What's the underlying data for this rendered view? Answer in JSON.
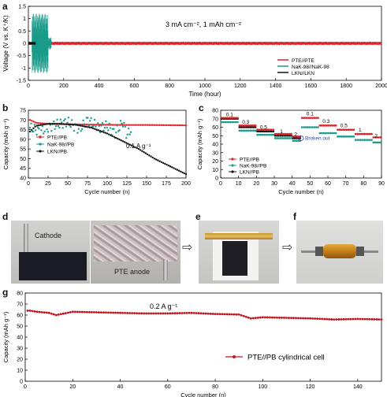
{
  "panels": {
    "a": "a",
    "b": "b",
    "c": "c",
    "d": "d",
    "e": "e",
    "f": "f",
    "g": "g"
  },
  "colors": {
    "red": "#e0202a",
    "teal": "#1a9b8a",
    "black": "#111111",
    "dark_red": "#c0141e"
  },
  "chart_data": [
    {
      "id": "a",
      "type": "line",
      "xlabel": "Time (hour)",
      "ylabel": "Voltage (V vs. K⁺/K)",
      "annotation": "3 mA cm⁻², 1 mAh cm⁻²",
      "xlim": [
        0,
        2000
      ],
      "ylim": [
        -1.5,
        1.5
      ],
      "xticks": [
        0,
        200,
        400,
        600,
        800,
        1000,
        1200,
        1400,
        1600,
        1800,
        2000
      ],
      "yticks": [
        -1.5,
        -1.0,
        -0.5,
        0.0,
        0.5,
        1.0,
        1.5
      ],
      "legend": [
        "PTE//PTE",
        "NaK-98//NaK-98",
        "LKN//LKN"
      ],
      "legend_position": "bottom-right",
      "series": [
        {
          "name": "PTE//PTE",
          "color": "#e0202a",
          "amplitude": 0.07,
          "x_end": 2000
        },
        {
          "name": "NaK-98//NaK-98",
          "color": "#1a9b8a",
          "amplitude": 1.2,
          "x_end": 130
        },
        {
          "name": "LKN//LKN",
          "color": "#111111",
          "amplitude": 0.05,
          "x_end": 40
        }
      ]
    },
    {
      "id": "b",
      "type": "scatter",
      "xlabel": "Cycle number (n)",
      "ylabel": "Capacity (mAh g⁻¹)",
      "annotation": "0.1 A g⁻¹",
      "xlim": [
        0,
        200
      ],
      "ylim": [
        40,
        75
      ],
      "xticks": [
        0,
        25,
        50,
        75,
        100,
        125,
        150,
        175,
        200
      ],
      "yticks": [
        40,
        45,
        50,
        55,
        60,
        65,
        70,
        75
      ],
      "legend": [
        "PTE//PB",
        "NaK-98//PB",
        "LKN//PB"
      ],
      "legend_position": "center-left",
      "series": [
        {
          "name": "PTE//PB",
          "color": "#e0202a",
          "x": [
            2,
            10,
            25,
            50,
            75,
            100,
            125,
            150,
            175,
            200
          ],
          "values": [
            70,
            68.5,
            68,
            67.8,
            67.6,
            67.5,
            67.4,
            67.4,
            67.3,
            67.2
          ]
        },
        {
          "name": "NaK-98//PB",
          "color": "#1a9b8a",
          "x": [
            2,
            15,
            30,
            50,
            65,
            75,
            90,
            100,
            110,
            120,
            125,
            130
          ],
          "values": [
            66,
            64,
            67,
            69,
            65,
            70,
            66,
            67,
            63,
            69,
            62,
            65
          ]
        },
        {
          "name": "LKN//PB",
          "color": "#111111",
          "x": [
            2,
            10,
            25,
            40,
            60,
            80,
            100,
            120,
            140,
            160,
            175,
            190,
            200
          ],
          "values": [
            64,
            67,
            68,
            68,
            67.5,
            66,
            63,
            59,
            55,
            50,
            47,
            44,
            42
          ]
        }
      ]
    },
    {
      "id": "c",
      "type": "scatter",
      "xlabel": "Cycle number (n)",
      "ylabel": "Capacity (mAh g⁻¹)",
      "xlim": [
        0,
        90
      ],
      "ylim": [
        0,
        80
      ],
      "xticks": [
        0,
        10,
        20,
        30,
        40,
        50,
        60,
        70,
        80,
        90
      ],
      "yticks": [
        0,
        10,
        20,
        30,
        40,
        50,
        60,
        70,
        80
      ],
      "rate_labels": [
        {
          "text": "0.1",
          "x": 5,
          "y": 73
        },
        {
          "text": "0.3",
          "x": 14,
          "y": 64
        },
        {
          "text": "0.5",
          "x": 24,
          "y": 58
        },
        {
          "text": "1",
          "x": 34,
          "y": 53
        },
        {
          "text": "2",
          "x": 42,
          "y": 50
        },
        {
          "text": "0.1",
          "x": 50,
          "y": 74
        },
        {
          "text": "0.3",
          "x": 59,
          "y": 65
        },
        {
          "text": "0.5",
          "x": 69,
          "y": 60
        },
        {
          "text": "1",
          "x": 78,
          "y": 55
        },
        {
          "text": "2",
          "x": 87,
          "y": 48
        }
      ],
      "broken_label": "Broken out",
      "broken_at": {
        "x": 45,
        "y": 47
      },
      "legend": [
        "PTE//PB",
        "NaK-98//PB",
        "LKN//PB"
      ],
      "legend_position": "bottom-left",
      "segments": [
        {
          "x": [
            0,
            10
          ],
          "PTE": 71,
          "NaK": 66,
          "LKN": 70
        },
        {
          "x": [
            10,
            20
          ],
          "PTE": 62,
          "NaK": 56,
          "LKN": 60
        },
        {
          "x": [
            20,
            30
          ],
          "PTE": 57,
          "NaK": 51,
          "LKN": 55
        },
        {
          "x": [
            30,
            40
          ],
          "PTE": 52,
          "NaK": 47,
          "LKN": 50
        },
        {
          "x": [
            40,
            45
          ],
          "PTE": 49,
          "NaK": 44,
          "LKN": 47
        },
        {
          "x": [
            45,
            55
          ],
          "PTE": 71,
          "NaK": 60,
          "LKN": null
        },
        {
          "x": [
            55,
            65
          ],
          "PTE": 62,
          "NaK": 53,
          "LKN": null
        },
        {
          "x": [
            65,
            75
          ],
          "PTE": 57,
          "NaK": 49,
          "LKN": null
        },
        {
          "x": [
            75,
            85
          ],
          "PTE": 52,
          "NaK": 45,
          "LKN": null
        },
        {
          "x": [
            85,
            90
          ],
          "PTE": 48,
          "NaK": 42,
          "LKN": null
        }
      ]
    },
    {
      "id": "g",
      "type": "line",
      "xlabel": "Cycle number (n)",
      "ylabel": "Capacity (mAh g⁻¹)",
      "annotation": "0.2 A g⁻¹",
      "xlim": [
        0,
        150
      ],
      "ylim": [
        0,
        80
      ],
      "xticks": [
        0,
        20,
        40,
        60,
        80,
        100,
        120,
        140
      ],
      "yticks": [
        0,
        10,
        20,
        30,
        40,
        50,
        60,
        70,
        80
      ],
      "legend": [
        "PTE//PB cylindrical cell"
      ],
      "legend_position": "bottom-right",
      "series": [
        {
          "name": "PTE//PB cylindrical cell",
          "color": "#c0141e",
          "x": [
            2,
            5,
            10,
            13,
            20,
            30,
            40,
            50,
            60,
            70,
            80,
            90,
            95,
            100,
            110,
            120,
            130,
            140,
            150
          ],
          "values": [
            64,
            63,
            62,
            60,
            63,
            62.5,
            62,
            61.5,
            61.5,
            62,
            61,
            60.5,
            57,
            58,
            57.5,
            57,
            56,
            56.5,
            56
          ]
        }
      ]
    }
  ],
  "photos": {
    "d_cathode_label": "Cathode",
    "d_anode_label": "PTE anode"
  }
}
